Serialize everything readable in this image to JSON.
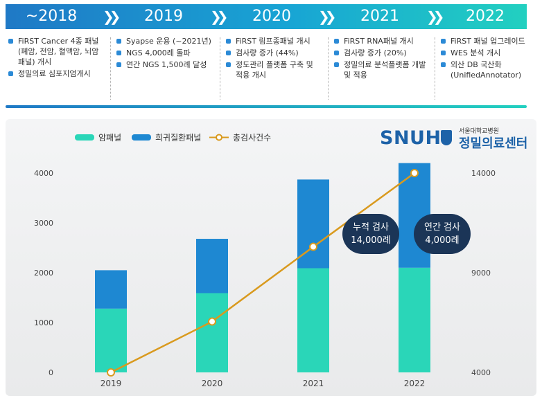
{
  "timeline": {
    "periods": [
      {
        "year": "~2018",
        "items": [
          "FiRST Cancer 4종 패널 (폐암, 전암, 혈액암, 뇌암패널) 개시",
          "정밀의료 심포지엄개시"
        ]
      },
      {
        "year": "2019",
        "items": [
          "Syapse 운용 (~2021년)",
          "NGS 4,000례 돌파",
          "연간 NGS 1,500례 달성"
        ]
      },
      {
        "year": "2020",
        "items": [
          "FiRST 림프종패널 개시",
          "검사량 증가 (44%)",
          "정도관리 플랫폼 구축 및 적용 개시"
        ]
      },
      {
        "year": "2021",
        "items": [
          "FiRST RNA패널 개시",
          "검사량 증가 (20%)",
          "정밀의료 분석플랫폼 개발 및 적용"
        ]
      },
      {
        "year": "2022",
        "items": [
          "FiRST 패널 업그레이드",
          "WES 분석 개시",
          "외산 DB 국산화 (UnifiedAnnotator)"
        ]
      }
    ]
  },
  "logo": {
    "mark": "SNUH",
    "sub": "서울대학교병원",
    "name": "정밀의료센터"
  },
  "callouts": [
    {
      "line1": "누적 검사",
      "line2": "14,000례"
    },
    {
      "line1": "연간 검사",
      "line2": "4,000례"
    }
  ],
  "colors": {
    "cancer": "#2ad6b8",
    "rare": "#1e88d2",
    "total": "#d99a1e",
    "navy": "#1b3557"
  },
  "chart_data": {
    "type": "bar",
    "categories": [
      "2019",
      "2020",
      "2021",
      "2022"
    ],
    "series": [
      {
        "name": "암패널",
        "type": "bar",
        "stack": "panel",
        "axis": "left",
        "values": [
          1280,
          1590,
          2090,
          2100
        ]
      },
      {
        "name": "희귀질환패널",
        "type": "bar",
        "stack": "panel",
        "axis": "left",
        "values": [
          770,
          1090,
          1780,
          2100
        ]
      },
      {
        "name": "총검사건수",
        "type": "line",
        "axis": "right",
        "values": [
          4000,
          6550,
          10300,
          14000
        ]
      }
    ],
    "left_axis": {
      "ylim": [
        0,
        4200
      ],
      "ticks": [
        "0",
        "1000",
        "2000",
        "3000",
        "4000"
      ]
    },
    "right_axis": {
      "ylim": [
        4000,
        14000
      ],
      "ticks": [
        "4000",
        "9000",
        "14000"
      ]
    },
    "legend": "top-left",
    "grid": false
  }
}
